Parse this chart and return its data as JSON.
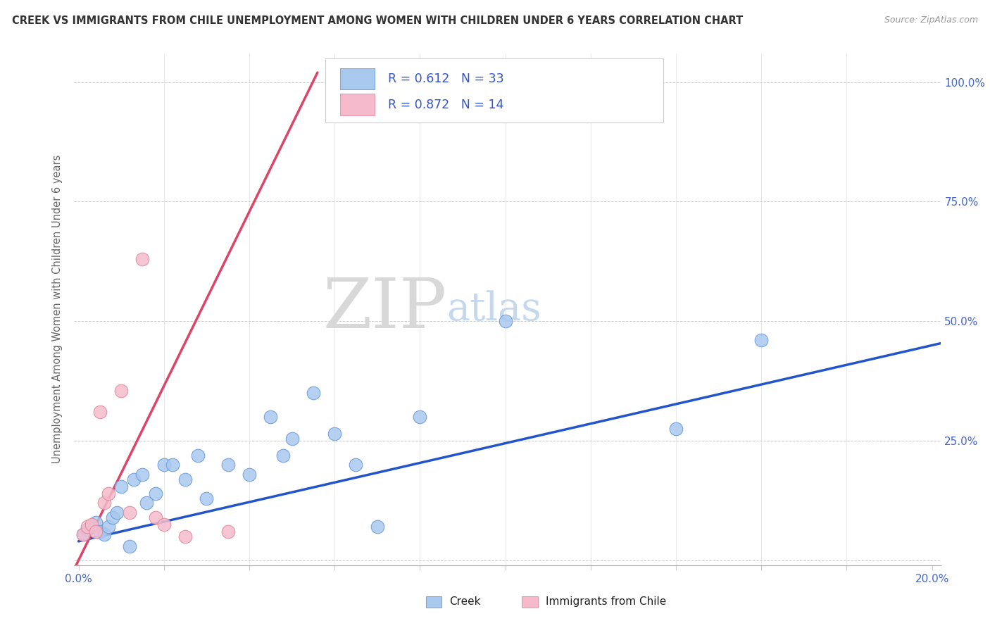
{
  "title": "CREEK VS IMMIGRANTS FROM CHILE UNEMPLOYMENT AMONG WOMEN WITH CHILDREN UNDER 6 YEARS CORRELATION CHART",
  "source": "Source: ZipAtlas.com",
  "ylabel": "Unemployment Among Women with Children Under 6 years",
  "xlim_min": -0.001,
  "xlim_max": 0.202,
  "ylim_min": -0.01,
  "ylim_max": 1.06,
  "xtick_positions": [
    0.0,
    0.02,
    0.04,
    0.06,
    0.08,
    0.1,
    0.12,
    0.14,
    0.16,
    0.18,
    0.2
  ],
  "ytick_positions": [
    0.0,
    0.25,
    0.5,
    0.75,
    1.0
  ],
  "creek_R": "0.612",
  "creek_N": "33",
  "chile_R": "0.872",
  "chile_N": "14",
  "creek_dot_color": "#A8C8EE",
  "creek_dot_edge": "#6699DD",
  "chile_dot_color": "#F5BBCC",
  "chile_dot_edge": "#DD8899",
  "creek_line_color": "#2255CC",
  "chile_line_color": "#DD4466",
  "axis_text_color": "#4466CC",
  "title_color": "#333333",
  "source_color": "#999999",
  "ylabel_color": "#666666",
  "legend_text_color": "#3355CC",
  "background": "#FFFFFF",
  "creek_x": [
    0.001,
    0.002,
    0.003,
    0.004,
    0.005,
    0.006,
    0.007,
    0.008,
    0.009,
    0.01,
    0.012,
    0.013,
    0.015,
    0.016,
    0.018,
    0.02,
    0.022,
    0.025,
    0.028,
    0.03,
    0.035,
    0.04,
    0.045,
    0.048,
    0.05,
    0.055,
    0.06,
    0.065,
    0.07,
    0.08,
    0.1,
    0.14,
    0.16
  ],
  "creek_y": [
    0.055,
    0.065,
    0.07,
    0.08,
    0.06,
    0.055,
    0.07,
    0.09,
    0.1,
    0.155,
    0.03,
    0.17,
    0.18,
    0.12,
    0.14,
    0.2,
    0.2,
    0.17,
    0.22,
    0.13,
    0.2,
    0.18,
    0.3,
    0.22,
    0.255,
    0.35,
    0.265,
    0.2,
    0.07,
    0.3,
    0.5,
    0.275,
    0.46
  ],
  "chile_x": [
    0.001,
    0.002,
    0.003,
    0.004,
    0.005,
    0.006,
    0.007,
    0.01,
    0.012,
    0.015,
    0.018,
    0.02,
    0.025,
    0.035
  ],
  "chile_y": [
    0.055,
    0.07,
    0.075,
    0.06,
    0.31,
    0.12,
    0.14,
    0.355,
    0.1,
    0.63,
    0.09,
    0.075,
    0.05,
    0.06
  ],
  "creek_line_x": [
    0.0,
    0.205
  ],
  "creek_line_y": [
    0.04,
    0.46
  ],
  "chile_line_x": [
    -0.001,
    0.056
  ],
  "chile_line_y": [
    -0.018,
    1.02
  ]
}
